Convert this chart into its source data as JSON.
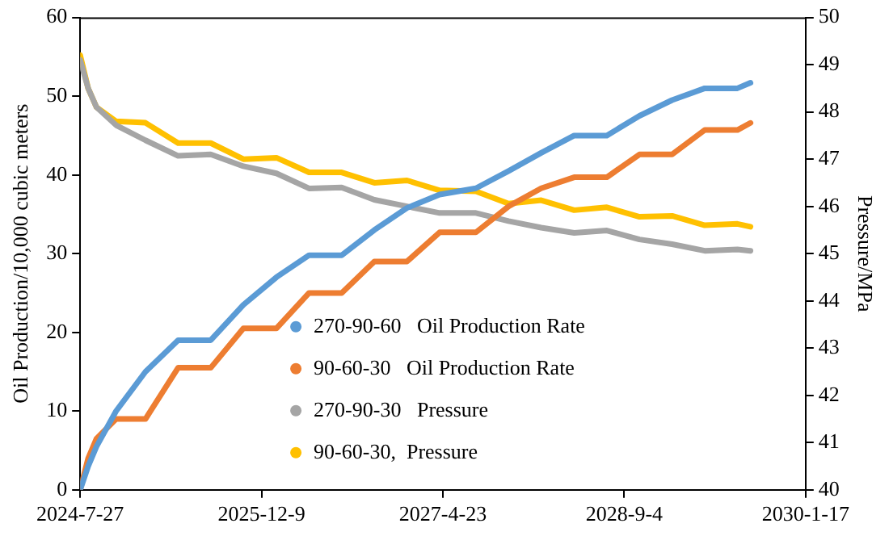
{
  "chart_data": {
    "type": "line",
    "xlabel": null,
    "ylabel": "Oil Production/10,000 cubic meters",
    "y2label": "Pressure/MPa",
    "x": [
      "2024-07-27",
      "2024-08-18",
      "2024-09-10",
      "2024-11-03",
      "2025-01-23",
      "2025-04-23",
      "2025-07-22",
      "2025-10-20",
      "2026-01-19",
      "2026-04-19",
      "2026-07-18",
      "2026-10-16",
      "2027-01-14",
      "2027-04-14",
      "2027-07-23",
      "2027-10-21",
      "2028-01-19",
      "2028-04-19",
      "2028-07-18",
      "2028-10-16",
      "2029-01-14",
      "2029-04-14",
      "2029-07-13",
      "2029-08-18"
    ],
    "series": [
      {
        "name": "270-90-60   Oil Production Rate",
        "color": "#5b9bd5",
        "values": [
          0,
          3,
          5.5,
          10,
          15,
          19,
          19,
          23.5,
          27,
          29.8,
          29.8,
          33,
          35.8,
          37.5,
          38.3,
          40.5,
          42.8,
          45,
          45,
          47.5,
          49.5,
          51,
          51,
          51.7
        ]
      },
      {
        "name": "90-60-30   Oil Production Rate",
        "color": "#ed7d31",
        "values": [
          0,
          4,
          6.5,
          9,
          9,
          15.5,
          15.5,
          20.5,
          20.5,
          25,
          25,
          29,
          29,
          32.7,
          32.7,
          36,
          38.3,
          39.7,
          39.7,
          42.6,
          42.6,
          45.7,
          45.7,
          46.6
        ]
      },
      {
        "name": "270-90-30   Pressure",
        "color": "#a5a5a5",
        "axis": "y2",
        "values": [
          49.1,
          48.5,
          48.1,
          47.72,
          47.4,
          47.07,
          47.1,
          46.85,
          46.7,
          46.38,
          46.4,
          46.14,
          46,
          45.86,
          45.86,
          45.69,
          45.55,
          45.44,
          45.49,
          45.3,
          45.2,
          45.06,
          45.09,
          45.06
        ]
      },
      {
        "name": "90-60-30,  Pressure",
        "color": "#ffc000",
        "axis": "y2",
        "values": [
          49.2,
          48.5,
          48.1,
          47.8,
          47.77,
          47.34,
          47.34,
          47,
          47.03,
          46.72,
          46.72,
          46.5,
          46.55,
          46.34,
          46.32,
          46.06,
          46.13,
          45.92,
          45.98,
          45.78,
          45.8,
          45.6,
          45.63,
          45.57
        ]
      }
    ],
    "xlim": [
      "2024-07-27",
      "2030-01-17"
    ],
    "xticks": [
      {
        "value": "2024-07-27",
        "label": "2024-7-27"
      },
      {
        "value": "2025-12-09",
        "label": "2025-12-9"
      },
      {
        "value": "2027-04-23",
        "label": "2027-4-23"
      },
      {
        "value": "2028-09-04",
        "label": "2028-9-4"
      },
      {
        "value": "2030-01-17",
        "label": "2030-1-17"
      }
    ],
    "ylim": [
      0,
      60
    ],
    "yticks": [
      0,
      10,
      20,
      30,
      40,
      50,
      60
    ],
    "y2lim": [
      40,
      50
    ],
    "y2ticks": [
      40,
      41,
      42,
      43,
      44,
      45,
      46,
      47,
      48,
      49,
      50
    ],
    "legend": "bottom",
    "marker": "none",
    "line_style": "solid"
  }
}
